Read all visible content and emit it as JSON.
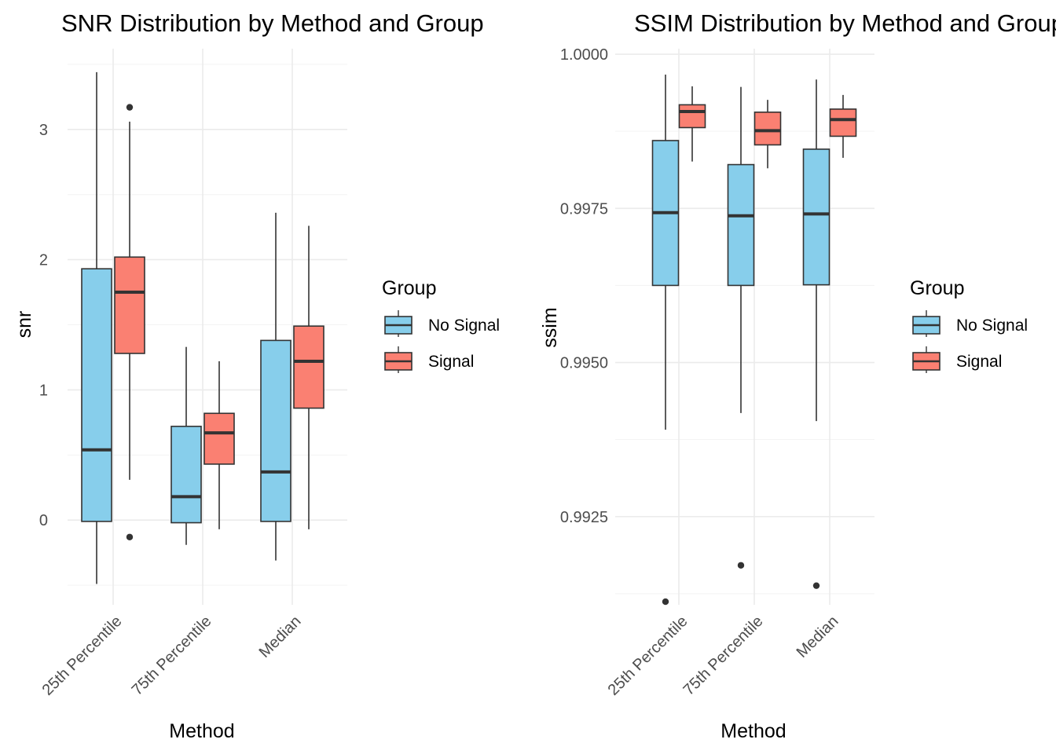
{
  "chart_data": [
    {
      "type": "boxplot",
      "title": "SNR Distribution by Method and Group",
      "xlabel": "Method",
      "ylabel": "snr",
      "ylim": [
        -0.65,
        3.62
      ],
      "y_ticks": [
        0,
        1,
        2,
        3
      ],
      "y_tick_labels": [
        "0",
        "1",
        "2",
        "3"
      ],
      "categories": [
        "25th Percentile",
        "75th Percentile",
        "Median"
      ],
      "legend": {
        "title": "Group",
        "position": "right"
      },
      "grid": true,
      "series": [
        {
          "name": "No Signal",
          "color": "#87CEEB",
          "boxes": [
            {
              "min": -0.49,
              "q1": -0.01,
              "median": 0.54,
              "q3": 1.93,
              "max": 3.44,
              "outliers": []
            },
            {
              "min": -0.19,
              "q1": -0.02,
              "median": 0.18,
              "q3": 0.72,
              "max": 1.33,
              "outliers": []
            },
            {
              "min": -0.31,
              "q1": -0.01,
              "median": 0.37,
              "q3": 1.38,
              "max": 2.36,
              "outliers": []
            }
          ]
        },
        {
          "name": "Signal",
          "color": "#FA8072",
          "boxes": [
            {
              "min": 0.31,
              "q1": 1.28,
              "median": 1.75,
              "q3": 2.02,
              "max": 3.06,
              "outliers": [
                3.17,
                -0.13
              ]
            },
            {
              "min": -0.07,
              "q1": 0.43,
              "median": 0.67,
              "q3": 0.82,
              "max": 1.22,
              "outliers": []
            },
            {
              "min": -0.07,
              "q1": 0.86,
              "median": 1.22,
              "q3": 1.49,
              "max": 2.26,
              "outliers": []
            }
          ]
        }
      ]
    },
    {
      "type": "boxplot",
      "title": "SSIM Distribution by Method and Group",
      "xlabel": "Method",
      "ylabel": "ssim",
      "ylim": [
        0.99107,
        1.00009
      ],
      "y_ticks": [
        0.9925,
        0.995,
        0.9975,
        1.0
      ],
      "y_tick_labels": [
        "0.9925",
        "0.9950",
        "0.9975",
        "1.0000"
      ],
      "categories": [
        "25th Percentile",
        "75th Percentile",
        "Median"
      ],
      "legend": {
        "title": "Group",
        "position": "right"
      },
      "grid": true,
      "series": [
        {
          "name": "No Signal",
          "color": "#87CEEB",
          "boxes": [
            {
              "min": 0.99391,
              "q1": 0.99625,
              "median": 0.99743,
              "q3": 0.9986,
              "max": 0.99967,
              "outliers": [
                0.99112
              ]
            },
            {
              "min": 0.99418,
              "q1": 0.99625,
              "median": 0.99738,
              "q3": 0.99821,
              "max": 0.99947,
              "outliers": [
                0.99171
              ]
            },
            {
              "min": 0.99405,
              "q1": 0.99626,
              "median": 0.99741,
              "q3": 0.99846,
              "max": 0.99959,
              "outliers": [
                0.99138
              ]
            }
          ]
        },
        {
          "name": "Signal",
          "color": "#FA8072",
          "boxes": [
            {
              "min": 0.99826,
              "q1": 0.99881,
              "median": 0.99907,
              "q3": 0.99918,
              "max": 0.99948,
              "outliers": []
            },
            {
              "min": 0.99815,
              "q1": 0.99853,
              "median": 0.99876,
              "q3": 0.99906,
              "max": 0.99926,
              "outliers": []
            },
            {
              "min": 0.99832,
              "q1": 0.99867,
              "median": 0.99894,
              "q3": 0.99911,
              "max": 0.99934,
              "outliers": []
            }
          ]
        }
      ]
    }
  ]
}
